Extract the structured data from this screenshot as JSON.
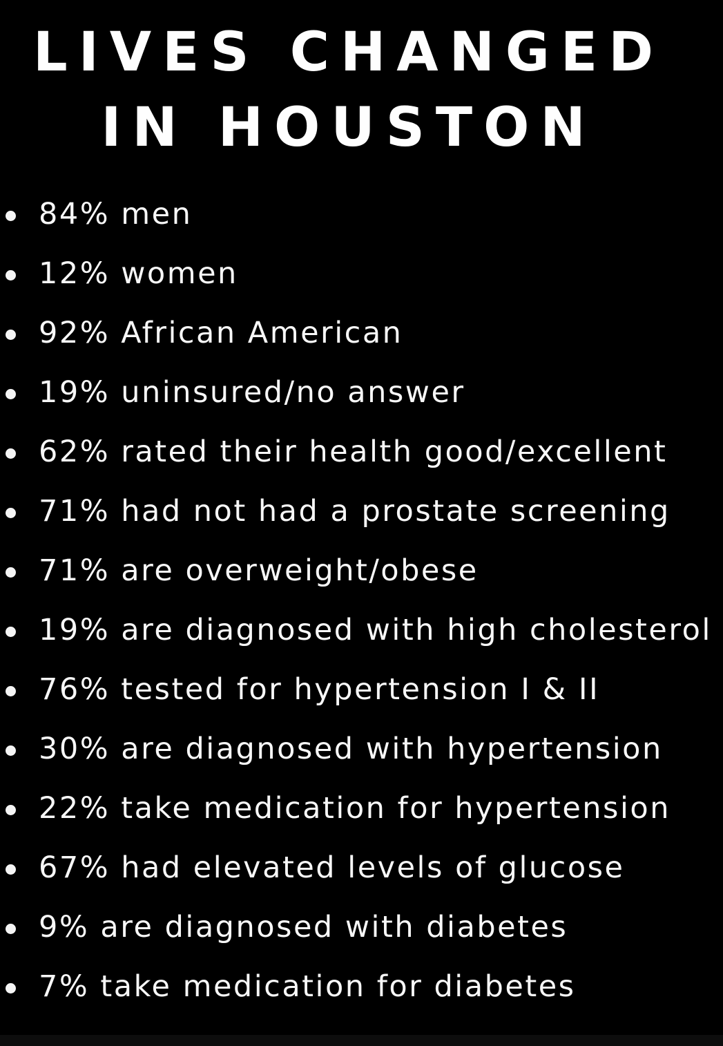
{
  "title": {
    "line1": "LIVES CHANGED",
    "line2": "IN HOUSTON"
  },
  "stats": {
    "items": [
      "84% men",
      "12% women",
      "92% African American",
      "19% uninsured/no answer",
      "62% rated their health good/excellent",
      "71% had not had a prostate screening",
      "71% are overweight/obese",
      "19% are diagnosed with high cholesterol",
      "76% tested for hypertension I & II",
      "30% are diagnosed with hypertension",
      "22% take medication for hypertension",
      "67% had elevated levels of glucose",
      "9% are diagnosed with diabetes",
      "7% take medication for diabetes"
    ]
  },
  "colors": {
    "background": "#000000",
    "text": "#ffffff"
  }
}
